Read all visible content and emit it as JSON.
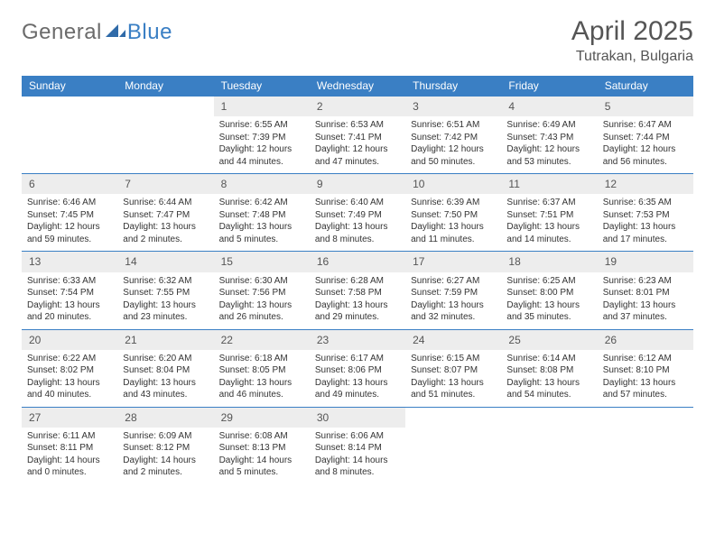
{
  "logo": {
    "text1": "General",
    "text2": "Blue"
  },
  "title": "April 2025",
  "location": "Tutrakan, Bulgaria",
  "colors": {
    "header_bg": "#3a7fc4",
    "header_text": "#ffffff",
    "daynum_bg": "#ededed",
    "daynum_text": "#555555",
    "body_text": "#333333",
    "rule": "#3a7fc4",
    "logo_gray": "#6b6b6b",
    "logo_blue": "#3a7fc4"
  },
  "weekdays": [
    "Sunday",
    "Monday",
    "Tuesday",
    "Wednesday",
    "Thursday",
    "Friday",
    "Saturday"
  ],
  "weeks": [
    [
      null,
      null,
      {
        "n": "1",
        "sr": "Sunrise: 6:55 AM",
        "ss": "Sunset: 7:39 PM",
        "d1": "Daylight: 12 hours",
        "d2": "and 44 minutes."
      },
      {
        "n": "2",
        "sr": "Sunrise: 6:53 AM",
        "ss": "Sunset: 7:41 PM",
        "d1": "Daylight: 12 hours",
        "d2": "and 47 minutes."
      },
      {
        "n": "3",
        "sr": "Sunrise: 6:51 AM",
        "ss": "Sunset: 7:42 PM",
        "d1": "Daylight: 12 hours",
        "d2": "and 50 minutes."
      },
      {
        "n": "4",
        "sr": "Sunrise: 6:49 AM",
        "ss": "Sunset: 7:43 PM",
        "d1": "Daylight: 12 hours",
        "d2": "and 53 minutes."
      },
      {
        "n": "5",
        "sr": "Sunrise: 6:47 AM",
        "ss": "Sunset: 7:44 PM",
        "d1": "Daylight: 12 hours",
        "d2": "and 56 minutes."
      }
    ],
    [
      {
        "n": "6",
        "sr": "Sunrise: 6:46 AM",
        "ss": "Sunset: 7:45 PM",
        "d1": "Daylight: 12 hours",
        "d2": "and 59 minutes."
      },
      {
        "n": "7",
        "sr": "Sunrise: 6:44 AM",
        "ss": "Sunset: 7:47 PM",
        "d1": "Daylight: 13 hours",
        "d2": "and 2 minutes."
      },
      {
        "n": "8",
        "sr": "Sunrise: 6:42 AM",
        "ss": "Sunset: 7:48 PM",
        "d1": "Daylight: 13 hours",
        "d2": "and 5 minutes."
      },
      {
        "n": "9",
        "sr": "Sunrise: 6:40 AM",
        "ss": "Sunset: 7:49 PM",
        "d1": "Daylight: 13 hours",
        "d2": "and 8 minutes."
      },
      {
        "n": "10",
        "sr": "Sunrise: 6:39 AM",
        "ss": "Sunset: 7:50 PM",
        "d1": "Daylight: 13 hours",
        "d2": "and 11 minutes."
      },
      {
        "n": "11",
        "sr": "Sunrise: 6:37 AM",
        "ss": "Sunset: 7:51 PM",
        "d1": "Daylight: 13 hours",
        "d2": "and 14 minutes."
      },
      {
        "n": "12",
        "sr": "Sunrise: 6:35 AM",
        "ss": "Sunset: 7:53 PM",
        "d1": "Daylight: 13 hours",
        "d2": "and 17 minutes."
      }
    ],
    [
      {
        "n": "13",
        "sr": "Sunrise: 6:33 AM",
        "ss": "Sunset: 7:54 PM",
        "d1": "Daylight: 13 hours",
        "d2": "and 20 minutes."
      },
      {
        "n": "14",
        "sr": "Sunrise: 6:32 AM",
        "ss": "Sunset: 7:55 PM",
        "d1": "Daylight: 13 hours",
        "d2": "and 23 minutes."
      },
      {
        "n": "15",
        "sr": "Sunrise: 6:30 AM",
        "ss": "Sunset: 7:56 PM",
        "d1": "Daylight: 13 hours",
        "d2": "and 26 minutes."
      },
      {
        "n": "16",
        "sr": "Sunrise: 6:28 AM",
        "ss": "Sunset: 7:58 PM",
        "d1": "Daylight: 13 hours",
        "d2": "and 29 minutes."
      },
      {
        "n": "17",
        "sr": "Sunrise: 6:27 AM",
        "ss": "Sunset: 7:59 PM",
        "d1": "Daylight: 13 hours",
        "d2": "and 32 minutes."
      },
      {
        "n": "18",
        "sr": "Sunrise: 6:25 AM",
        "ss": "Sunset: 8:00 PM",
        "d1": "Daylight: 13 hours",
        "d2": "and 35 minutes."
      },
      {
        "n": "19",
        "sr": "Sunrise: 6:23 AM",
        "ss": "Sunset: 8:01 PM",
        "d1": "Daylight: 13 hours",
        "d2": "and 37 minutes."
      }
    ],
    [
      {
        "n": "20",
        "sr": "Sunrise: 6:22 AM",
        "ss": "Sunset: 8:02 PM",
        "d1": "Daylight: 13 hours",
        "d2": "and 40 minutes."
      },
      {
        "n": "21",
        "sr": "Sunrise: 6:20 AM",
        "ss": "Sunset: 8:04 PM",
        "d1": "Daylight: 13 hours",
        "d2": "and 43 minutes."
      },
      {
        "n": "22",
        "sr": "Sunrise: 6:18 AM",
        "ss": "Sunset: 8:05 PM",
        "d1": "Daylight: 13 hours",
        "d2": "and 46 minutes."
      },
      {
        "n": "23",
        "sr": "Sunrise: 6:17 AM",
        "ss": "Sunset: 8:06 PM",
        "d1": "Daylight: 13 hours",
        "d2": "and 49 minutes."
      },
      {
        "n": "24",
        "sr": "Sunrise: 6:15 AM",
        "ss": "Sunset: 8:07 PM",
        "d1": "Daylight: 13 hours",
        "d2": "and 51 minutes."
      },
      {
        "n": "25",
        "sr": "Sunrise: 6:14 AM",
        "ss": "Sunset: 8:08 PM",
        "d1": "Daylight: 13 hours",
        "d2": "and 54 minutes."
      },
      {
        "n": "26",
        "sr": "Sunrise: 6:12 AM",
        "ss": "Sunset: 8:10 PM",
        "d1": "Daylight: 13 hours",
        "d2": "and 57 minutes."
      }
    ],
    [
      {
        "n": "27",
        "sr": "Sunrise: 6:11 AM",
        "ss": "Sunset: 8:11 PM",
        "d1": "Daylight: 14 hours",
        "d2": "and 0 minutes."
      },
      {
        "n": "28",
        "sr": "Sunrise: 6:09 AM",
        "ss": "Sunset: 8:12 PM",
        "d1": "Daylight: 14 hours",
        "d2": "and 2 minutes."
      },
      {
        "n": "29",
        "sr": "Sunrise: 6:08 AM",
        "ss": "Sunset: 8:13 PM",
        "d1": "Daylight: 14 hours",
        "d2": "and 5 minutes."
      },
      {
        "n": "30",
        "sr": "Sunrise: 6:06 AM",
        "ss": "Sunset: 8:14 PM",
        "d1": "Daylight: 14 hours",
        "d2": "and 8 minutes."
      },
      null,
      null,
      null
    ]
  ]
}
